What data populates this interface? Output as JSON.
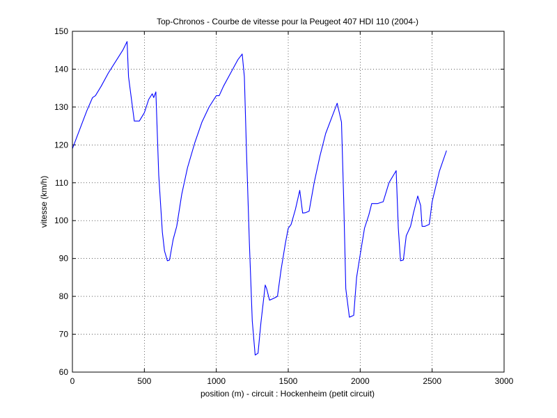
{
  "chart_data": {
    "type": "line",
    "title": "Top-Chronos - Courbe de vitesse pour la Peugeot 407 HDI 110 (2004-)",
    "xlabel": "position (m) - circuit : Hockenheim (petit circuit)",
    "ylabel": "vitesse (km/h)",
    "xlim": [
      0,
      3000
    ],
    "ylim": [
      60,
      150
    ],
    "xticks": [
      0,
      500,
      1000,
      1500,
      2000,
      2500,
      3000
    ],
    "yticks": [
      60,
      70,
      80,
      90,
      100,
      110,
      120,
      130,
      140,
      150
    ],
    "xtick_labels": [
      "0",
      "500",
      "1000",
      "1500",
      "2000",
      "2500",
      "3000"
    ],
    "ytick_labels": [
      "60",
      "70",
      "80",
      "90",
      "100",
      "110",
      "120",
      "130",
      "140",
      "150"
    ],
    "grid": true,
    "line_color": "#0000ff",
    "series": [
      {
        "x": [
          0,
          50,
          100,
          140,
          160,
          200,
          250,
          300,
          350,
          380,
          390,
          430,
          465,
          500,
          530,
          555,
          565,
          580,
          600,
          625,
          640,
          660,
          675,
          700,
          725,
          760,
          800,
          850,
          900,
          950,
          1000,
          1020,
          1050,
          1100,
          1150,
          1180,
          1195,
          1210,
          1230,
          1250,
          1270,
          1290,
          1310,
          1340,
          1350,
          1370,
          1400,
          1425,
          1450,
          1480,
          1500,
          1520,
          1550,
          1580,
          1600,
          1620,
          1645,
          1680,
          1720,
          1760,
          1800,
          1840,
          1870,
          1885,
          1900,
          1925,
          1955,
          1975,
          2000,
          2030,
          2060,
          2080,
          2120,
          2160,
          2200,
          2250,
          2265,
          2280,
          2300,
          2320,
          2350,
          2370,
          2400,
          2420,
          2430,
          2450,
          2480,
          2500,
          2550,
          2600
        ],
        "y": [
          119,
          124,
          129,
          132.5,
          133,
          135.5,
          139,
          142,
          145,
          147.3,
          138,
          126.3,
          126.3,
          128.5,
          132,
          133.5,
          132.5,
          134,
          112,
          97,
          92,
          89.4,
          89.6,
          95,
          98.5,
          107,
          114,
          120.5,
          126,
          130,
          133,
          133,
          135.5,
          139,
          142.5,
          144,
          138,
          118,
          94,
          73.5,
          64.5,
          65,
          73,
          83,
          82,
          79,
          79.5,
          80,
          87,
          94,
          98,
          99,
          103,
          108,
          102,
          102.1,
          102.5,
          110,
          117,
          123,
          127,
          131,
          126,
          106,
          82,
          74.5,
          75,
          85,
          91,
          98,
          101.5,
          104.5,
          104.5,
          105,
          110,
          113.2,
          98,
          89.4,
          89.6,
          96,
          98.5,
          102,
          106.5,
          104,
          98.5,
          98.5,
          99,
          105,
          113,
          118.5
        ]
      }
    ]
  }
}
